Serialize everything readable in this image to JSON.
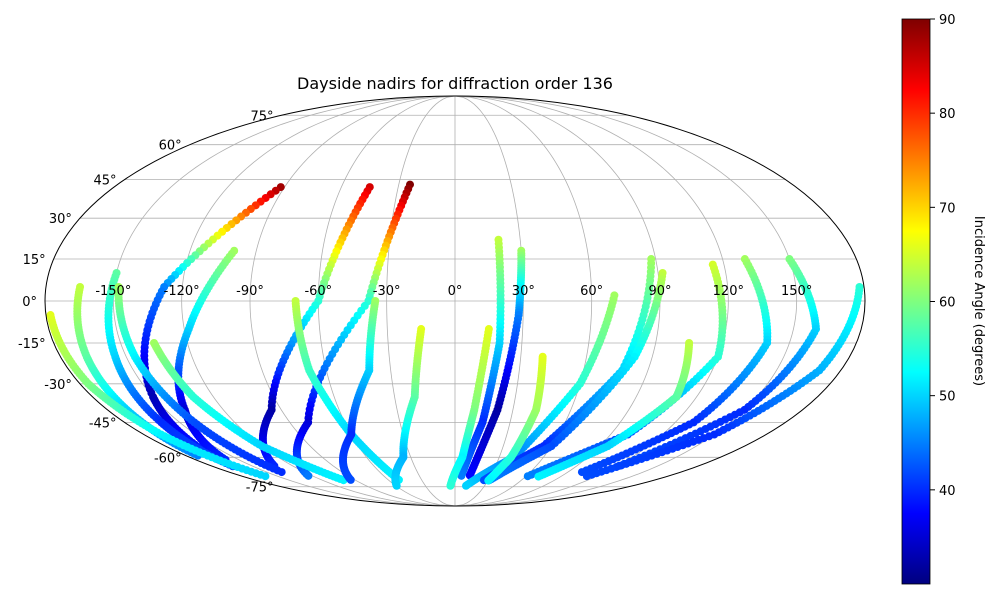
{
  "chart_data": {
    "type": "scatter",
    "projection": "mollweide",
    "title": "Dayside nadirs for diffraction order 136",
    "lon_ticks": [
      "-150°",
      "-120°",
      "-90°",
      "-60°",
      "-30°",
      "0°",
      "30°",
      "60°",
      "90°",
      "120°",
      "150°"
    ],
    "lat_ticks": [
      "75°",
      "60°",
      "45°",
      "30°",
      "15°",
      "0°",
      "-15°",
      "-30°",
      "-45°",
      "-60°",
      "-75°"
    ],
    "grid": true,
    "colorbar": {
      "label": "Incidence Angle (degrees)",
      "min": 30,
      "max": 90,
      "ticks": [
        "40",
        "50",
        "60",
        "70",
        "80",
        "90"
      ],
      "colormap": "jet"
    },
    "tracks": [
      {
        "lon": [
          -92,
          -128,
          -150,
          -162
        ],
        "lat": [
          42,
          5,
          -35,
          -58
        ],
        "c": [
          88,
          45,
          33,
          40
        ]
      },
      {
        "lon": [
          -45,
          -60,
          -95,
          -135
        ],
        "lat": [
          42,
          0,
          -40,
          -65
        ],
        "c": [
          85,
          55,
          32,
          40
        ]
      },
      {
        "lon": [
          -24,
          -38,
          -80,
          -125
        ],
        "lat": [
          43,
          0,
          -45,
          -70
        ],
        "c": [
          90,
          55,
          35,
          45
        ]
      },
      {
        "lon": [
          -100,
          -118,
          -140,
          -160
        ],
        "lat": [
          18,
          -10,
          -40,
          -62
        ],
        "c": [
          62,
          50,
          35,
          40
        ]
      },
      {
        "lon": [
          -150,
          -155,
          -160,
          -165
        ],
        "lat": [
          10,
          -20,
          -45,
          -65
        ],
        "c": [
          58,
          50,
          40,
          42
        ]
      },
      {
        "lon": [
          -148,
          -146,
          -142,
          -138
        ],
        "lat": [
          5,
          -20,
          -45,
          -68
        ],
        "c": [
          62,
          52,
          42,
          40
        ]
      },
      {
        "lon": [
          -165,
          -168,
          -170,
          -172
        ],
        "lat": [
          5,
          -20,
          -40,
          -60
        ],
        "c": [
          64,
          58,
          50,
          45
        ]
      },
      {
        "lon": [
          -178,
          -176,
          -170,
          -160
        ],
        "lat": [
          -5,
          -30,
          -50,
          -70
        ],
        "c": [
          66,
          60,
          52,
          50
        ]
      },
      {
        "lon": [
          -135,
          -130,
          -120,
          -100
        ],
        "lat": [
          -15,
          -35,
          -55,
          -72
        ],
        "c": [
          62,
          55,
          50,
          52
        ]
      },
      {
        "lon": [
          -70,
          -68,
          -60,
          -50
        ],
        "lat": [
          0,
          -25,
          -50,
          -72
        ],
        "c": [
          64,
          56,
          50,
          52
        ]
      },
      {
        "lon": [
          -35,
          -40,
          -60,
          -95
        ],
        "lat": [
          0,
          -25,
          -50,
          -72
        ],
        "c": [
          62,
          50,
          40,
          42
        ]
      },
      {
        "lon": [
          -15,
          -20,
          -35,
          -60
        ],
        "lat": [
          -10,
          -35,
          -60,
          -75
        ],
        "c": [
          66,
          58,
          48,
          50
        ]
      },
      {
        "lon": [
          20,
          20,
          15,
          5
        ],
        "lat": [
          22,
          -15,
          -45,
          -70
        ],
        "c": [
          64,
          50,
          40,
          45
        ]
      },
      {
        "lon": [
          30,
          28,
          22,
          12
        ],
        "lat": [
          18,
          -5,
          -40,
          -70
        ],
        "c": [
          62,
          45,
          32,
          38
        ]
      },
      {
        "lon": [
          15,
          10,
          5,
          -5
        ],
        "lat": [
          -10,
          -40,
          -60,
          -75
        ],
        "c": [
          66,
          60,
          52,
          55
        ]
      },
      {
        "lon": [
          70,
          60,
          40,
          10
        ],
        "lat": [
          2,
          -30,
          -60,
          -75
        ],
        "c": [
          62,
          55,
          45,
          50
        ]
      },
      {
        "lon": [
          88,
          78,
          55,
          25
        ],
        "lat": [
          15,
          -25,
          -55,
          -72
        ],
        "c": [
          62,
          50,
          40,
          42
        ]
      },
      {
        "lon": [
          92,
          82,
          60,
          30
        ],
        "lat": [
          10,
          -20,
          -55,
          -72
        ],
        "c": [
          64,
          52,
          42,
          45
        ]
      },
      {
        "lon": [
          115,
          120,
          100,
          60
        ],
        "lat": [
          13,
          -20,
          -50,
          -70
        ],
        "c": [
          65,
          55,
          42,
          45
        ]
      },
      {
        "lon": [
          130,
          140,
          130,
          100
        ],
        "lat": [
          15,
          -15,
          -45,
          -68
        ],
        "c": [
          62,
          50,
          40,
          42
        ]
      },
      {
        "lon": [
          150,
          160,
          150,
          120
        ],
        "lat": [
          15,
          -10,
          -40,
          -65
        ],
        "c": [
          60,
          50,
          40,
          42
        ]
      },
      {
        "lon": [
          178,
          170,
          150,
          110
        ],
        "lat": [
          5,
          -25,
          -50,
          -70
        ],
        "c": [
          55,
          48,
          40,
          42
        ]
      },
      {
        "lon": [
          40,
          42,
          38,
          30
        ],
        "lat": [
          -20,
          -40,
          -60,
          -72
        ],
        "c": [
          66,
          62,
          55,
          52
        ]
      },
      {
        "lon": [
          105,
          110,
          95,
          70
        ],
        "lat": [
          -15,
          -35,
          -55,
          -70
        ],
        "c": [
          64,
          58,
          50,
          52
        ]
      }
    ]
  }
}
